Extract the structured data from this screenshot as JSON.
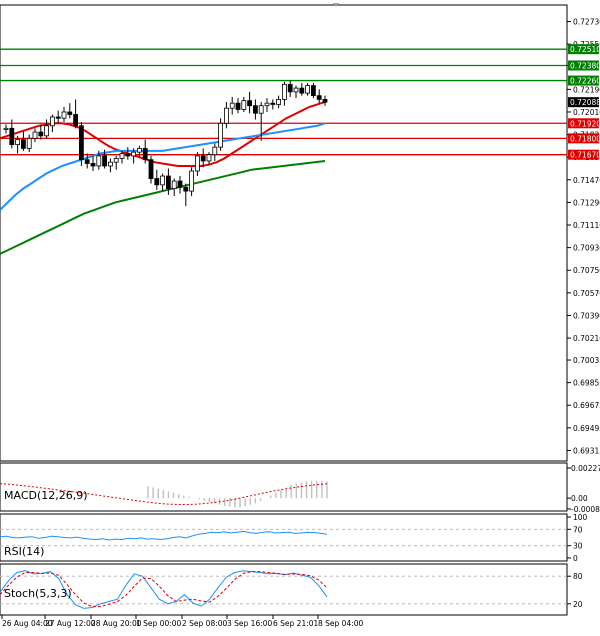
{
  "chart_data": [
    {
      "type": "candlestick",
      "price_axis": {
        "ticks": [
          "0.72730",
          "0.72550",
          "0.72380",
          "0.72190",
          "0.72010",
          "0.71830",
          "0.71650",
          "0.71470",
          "0.71290",
          "0.71110",
          "0.70930",
          "0.70750",
          "0.70570",
          "0.70390",
          "0.70210",
          "0.70035",
          "0.69855",
          "0.69675",
          "0.69495",
          "0.69315"
        ],
        "ylim": [
          0.69255,
          0.7279
        ]
      },
      "levels": [
        {
          "value": 0.7251,
          "label": "0.72510",
          "color": "#008000"
        },
        {
          "value": 0.7238,
          "label": "0.72380",
          "color": "#008000"
        },
        {
          "value": 0.7226,
          "label": "0.72260",
          "color": "#008000"
        },
        {
          "value": 0.7192,
          "label": "0.71920",
          "color": "#e00000"
        },
        {
          "value": 0.718,
          "label": "0.71800",
          "color": "#e00000"
        },
        {
          "value": 0.7167,
          "label": "0.71670",
          "color": "#e00000"
        }
      ],
      "current_price": {
        "value": 0.72088,
        "label": "0.72088"
      },
      "x_axis": {
        "ticks": [
          "26 Aug 04:00",
          "27 Aug 12:00",
          "28 Aug 20:00",
          "1 Sep 00:00",
          "2 Sep 08:00",
          "3 Sep 16:00",
          "6 Sep 21:01",
          "8 Sep 04:00"
        ]
      },
      "candles": [
        {
          "o": 0.7187,
          "h": 0.7191,
          "l": 0.7184,
          "c": 0.7188
        },
        {
          "o": 0.7188,
          "h": 0.7195,
          "l": 0.7172,
          "c": 0.7175
        },
        {
          "o": 0.7175,
          "h": 0.7182,
          "l": 0.7168,
          "c": 0.7179
        },
        {
          "o": 0.7179,
          "h": 0.7186,
          "l": 0.717,
          "c": 0.7172
        },
        {
          "o": 0.7172,
          "h": 0.7183,
          "l": 0.7169,
          "c": 0.718
        },
        {
          "o": 0.718,
          "h": 0.7188,
          "l": 0.7177,
          "c": 0.7185
        },
        {
          "o": 0.7185,
          "h": 0.7191,
          "l": 0.7179,
          "c": 0.7182
        },
        {
          "o": 0.7182,
          "h": 0.7195,
          "l": 0.718,
          "c": 0.719
        },
        {
          "o": 0.719,
          "h": 0.7199,
          "l": 0.7185,
          "c": 0.7197
        },
        {
          "o": 0.7197,
          "h": 0.7202,
          "l": 0.7192,
          "c": 0.7196
        },
        {
          "o": 0.7196,
          "h": 0.7205,
          "l": 0.7193,
          "c": 0.7201
        },
        {
          "o": 0.7201,
          "h": 0.7208,
          "l": 0.7196,
          "c": 0.7199
        },
        {
          "o": 0.7199,
          "h": 0.7211,
          "l": 0.7188,
          "c": 0.719
        },
        {
          "o": 0.719,
          "h": 0.7193,
          "l": 0.7158,
          "c": 0.7163
        },
        {
          "o": 0.7163,
          "h": 0.7168,
          "l": 0.7156,
          "c": 0.716
        },
        {
          "o": 0.716,
          "h": 0.7166,
          "l": 0.7154,
          "c": 0.7158
        },
        {
          "o": 0.7158,
          "h": 0.717,
          "l": 0.7155,
          "c": 0.7166
        },
        {
          "o": 0.7166,
          "h": 0.7171,
          "l": 0.7156,
          "c": 0.7158
        },
        {
          "o": 0.7158,
          "h": 0.7164,
          "l": 0.7153,
          "c": 0.7161
        },
        {
          "o": 0.7161,
          "h": 0.7166,
          "l": 0.7155,
          "c": 0.7164
        },
        {
          "o": 0.7164,
          "h": 0.717,
          "l": 0.716,
          "c": 0.7168
        },
        {
          "o": 0.7168,
          "h": 0.7173,
          "l": 0.7163,
          "c": 0.7166
        },
        {
          "o": 0.7166,
          "h": 0.7172,
          "l": 0.716,
          "c": 0.7169
        },
        {
          "o": 0.7169,
          "h": 0.7174,
          "l": 0.7165,
          "c": 0.7172
        },
        {
          "o": 0.7172,
          "h": 0.7179,
          "l": 0.716,
          "c": 0.7163
        },
        {
          "o": 0.7163,
          "h": 0.7166,
          "l": 0.7144,
          "c": 0.7148
        },
        {
          "o": 0.7148,
          "h": 0.7155,
          "l": 0.7139,
          "c": 0.7143
        },
        {
          "o": 0.7143,
          "h": 0.7152,
          "l": 0.7138,
          "c": 0.715
        },
        {
          "o": 0.715,
          "h": 0.7156,
          "l": 0.7135,
          "c": 0.714
        },
        {
          "o": 0.714,
          "h": 0.7148,
          "l": 0.7134,
          "c": 0.7146
        },
        {
          "o": 0.7146,
          "h": 0.715,
          "l": 0.7136,
          "c": 0.7141
        },
        {
          "o": 0.7141,
          "h": 0.7144,
          "l": 0.7126,
          "c": 0.7138
        },
        {
          "o": 0.7138,
          "h": 0.7157,
          "l": 0.7134,
          "c": 0.7154
        },
        {
          "o": 0.7154,
          "h": 0.7169,
          "l": 0.715,
          "c": 0.7166
        },
        {
          "o": 0.7166,
          "h": 0.7172,
          "l": 0.7157,
          "c": 0.7162
        },
        {
          "o": 0.7162,
          "h": 0.7169,
          "l": 0.7159,
          "c": 0.7167
        },
        {
          "o": 0.7167,
          "h": 0.7176,
          "l": 0.7162,
          "c": 0.7173
        },
        {
          "o": 0.7173,
          "h": 0.7196,
          "l": 0.717,
          "c": 0.7192
        },
        {
          "o": 0.7192,
          "h": 0.7209,
          "l": 0.7188,
          "c": 0.7204
        },
        {
          "o": 0.7204,
          "h": 0.7213,
          "l": 0.7199,
          "c": 0.7208
        },
        {
          "o": 0.7208,
          "h": 0.7212,
          "l": 0.72,
          "c": 0.7203
        },
        {
          "o": 0.7203,
          "h": 0.7213,
          "l": 0.7201,
          "c": 0.721
        },
        {
          "o": 0.721,
          "h": 0.7217,
          "l": 0.72,
          "c": 0.7206
        },
        {
          "o": 0.7206,
          "h": 0.7211,
          "l": 0.7195,
          "c": 0.72
        },
        {
          "o": 0.72,
          "h": 0.7209,
          "l": 0.7178,
          "c": 0.7206
        },
        {
          "o": 0.7206,
          "h": 0.7212,
          "l": 0.7201,
          "c": 0.7208
        },
        {
          "o": 0.7208,
          "h": 0.7211,
          "l": 0.7203,
          "c": 0.7207
        },
        {
          "o": 0.7207,
          "h": 0.7214,
          "l": 0.7204,
          "c": 0.7211
        },
        {
          "o": 0.7211,
          "h": 0.7225,
          "l": 0.7206,
          "c": 0.7223
        },
        {
          "o": 0.7223,
          "h": 0.7226,
          "l": 0.7213,
          "c": 0.7217
        },
        {
          "o": 0.7217,
          "h": 0.7222,
          "l": 0.7212,
          "c": 0.722
        },
        {
          "o": 0.722,
          "h": 0.7224,
          "l": 0.7214,
          "c": 0.7216
        },
        {
          "o": 0.7216,
          "h": 0.7224,
          "l": 0.7214,
          "c": 0.7222
        },
        {
          "o": 0.7222,
          "h": 0.7224,
          "l": 0.7212,
          "c": 0.7214
        },
        {
          "o": 0.7214,
          "h": 0.7219,
          "l": 0.7208,
          "c": 0.7211
        },
        {
          "o": 0.7211,
          "h": 0.7214,
          "l": 0.7206,
          "c": 0.72088
        }
      ],
      "series": [
        {
          "color": "#e00000",
          "values": [
            0.718,
            0.7182,
            0.7184,
            0.7186,
            0.7188,
            0.719,
            0.7191,
            0.7192,
            0.7192,
            0.7191,
            0.7189,
            0.7186,
            0.7182,
            0.7178,
            0.7174,
            0.7171,
            0.7169,
            0.7167,
            0.7165,
            0.7163,
            0.7161,
            0.716,
            0.7159,
            0.7158,
            0.7158,
            0.7158,
            0.7158,
            0.7159,
            0.7161,
            0.7164,
            0.7168,
            0.7172,
            0.7176,
            0.718,
            0.7184,
            0.7188,
            0.7192,
            0.7196,
            0.7199,
            0.7202,
            0.7205,
            0.7207,
            0.7209
          ]
        },
        {
          "color": "#1e90ff",
          "values": [
            0.7123,
            0.7129,
            0.7135,
            0.714,
            0.7144,
            0.7148,
            0.7152,
            0.7155,
            0.7158,
            0.716,
            0.7162,
            0.7164,
            0.7166,
            0.7168,
            0.7169,
            0.717,
            0.717,
            0.717,
            0.717,
            0.717,
            0.717,
            0.717,
            0.7171,
            0.7172,
            0.7173,
            0.7174,
            0.7175,
            0.7176,
            0.7177,
            0.7178,
            0.7179,
            0.718,
            0.7181,
            0.7182,
            0.7183,
            0.7184,
            0.7185,
            0.7186,
            0.7187,
            0.7188,
            0.7189,
            0.719,
            0.7192
          ]
        },
        {
          "color": "#008000",
          "values": [
            0.7088,
            0.7092,
            0.7096,
            0.71,
            0.7104,
            0.7108,
            0.7112,
            0.7116,
            0.712,
            0.7123,
            0.7126,
            0.7129,
            0.7131,
            0.7133,
            0.7135,
            0.7137,
            0.7139,
            0.7141,
            0.7143,
            0.7145,
            0.7147,
            0.7149,
            0.7151,
            0.7153,
            0.7155,
            0.7156,
            0.7157,
            0.7158,
            0.7159,
            0.716,
            0.7161,
            0.7162
          ]
        }
      ]
    },
    {
      "type": "bar",
      "label": "MACD(12,26,9)",
      "axis_ticks": [
        "0.002276",
        "0.00",
        "-0.00082"
      ],
      "ylim": [
        -0.00082,
        0.002276
      ],
      "bar_color": "#c0c0c0",
      "signal_color": "#e00000",
      "values": [
        0.0009,
        0.0008,
        0.0007,
        0.0006,
        0.0005,
        0.0004,
        0.0003,
        0.0002,
        0.0001,
        0.0,
        -0.0001,
        -0.0002,
        -0.0003,
        -0.0004,
        -0.0005,
        -0.0006,
        -0.00065,
        -0.0007,
        -0.00068,
        -0.0006,
        -0.0005,
        -0.0004,
        -0.0002,
        0.0,
        0.0002,
        0.0004,
        0.0006,
        0.0008,
        0.001,
        0.0011,
        0.0012,
        0.00125,
        0.0013,
        0.0013,
        0.00128,
        0.00125
      ],
      "signal": [
        0.0011,
        0.00105,
        0.00098,
        0.0009,
        0.00082,
        0.00073,
        0.00064,
        0.00055,
        0.00046,
        0.00037,
        0.00027,
        0.00017,
        7e-05,
        -3e-05,
        -0.00013,
        -0.00023,
        -0.00032,
        -0.0004,
        -0.00045,
        -0.00048,
        -0.00048,
        -0.00046,
        -0.0004,
        -0.00032,
        -0.00022,
        -0.0001,
        5e-05,
        0.0002,
        0.00035,
        0.0005,
        0.00063,
        0.00075,
        0.00085,
        0.00095,
        0.00102,
        0.00108
      ]
    },
    {
      "type": "line",
      "label": "RSI(14)",
      "axis_ticks": [
        "100",
        "70",
        "30",
        "0"
      ],
      "ylim": [
        0,
        100
      ],
      "levels": [
        70,
        30
      ],
      "color": "#1e90ff",
      "values": [
        52,
        53,
        50,
        49,
        51,
        52,
        48,
        50,
        53,
        52,
        50,
        49,
        51,
        48,
        46,
        45,
        47,
        44,
        46,
        45,
        48,
        47,
        49,
        46,
        47,
        45,
        47,
        50,
        52,
        49,
        54,
        58,
        60,
        63,
        62,
        64,
        61,
        63,
        65,
        62,
        60,
        63,
        64,
        61,
        62,
        63,
        60,
        61,
        63,
        62,
        60,
        58
      ]
    },
    {
      "type": "line",
      "label": "Stoch(5,3,3)",
      "axis_ticks": [
        "80",
        "20"
      ],
      "ylim": [
        0,
        100
      ],
      "levels": [
        80,
        20
      ],
      "series": [
        {
          "color": "#1e90ff",
          "values": [
            45,
            70,
            88,
            92,
            85,
            86,
            90,
            75,
            40,
            18,
            10,
            12,
            20,
            25,
            30,
            60,
            85,
            80,
            55,
            30,
            20,
            25,
            40,
            22,
            15,
            30,
            55,
            78,
            88,
            92,
            90,
            88,
            85,
            86,
            83,
            87,
            82,
            78,
            60,
            35
          ]
        },
        {
          "color": "#e00000",
          "values": [
            40,
            60,
            78,
            88,
            88,
            86,
            87,
            82,
            62,
            40,
            22,
            14,
            14,
            19,
            25,
            38,
            58,
            76,
            75,
            58,
            38,
            25,
            28,
            30,
            26,
            24,
            36,
            54,
            73,
            86,
            90,
            90,
            88,
            86,
            84,
            85,
            84,
            81,
            72,
            55
          ]
        }
      ]
    }
  ]
}
